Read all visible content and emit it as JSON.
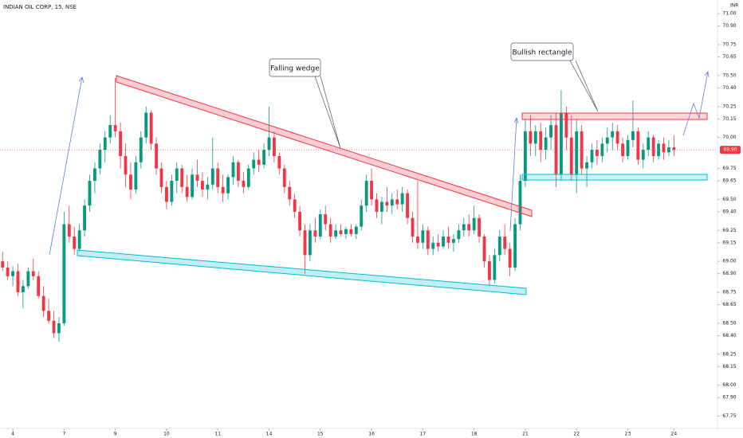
{
  "header": {
    "title": "INDIAN OIL CORP, 15, NSE",
    "currency": "INR"
  },
  "chart_data": {
    "type": "candlestick",
    "annotations": [
      "Falling wedge",
      "Bullish rectangle"
    ],
    "up_color": "#089981",
    "down_color": "#f23645",
    "last_price": {
      "value": 69.9,
      "label": "69.90"
    },
    "ylim": [
      67.67,
      71.11
    ],
    "yticks": [
      {
        "value": 71,
        "label": "71.00"
      },
      {
        "value": 70.9,
        "label": "70.90"
      },
      {
        "value": 70.75,
        "label": "70.75"
      },
      {
        "value": 70.65,
        "label": "70.65"
      },
      {
        "value": 70.5,
        "label": "70.50"
      },
      {
        "value": 70.4,
        "label": "70.40"
      },
      {
        "value": 70.25,
        "label": "70.25"
      },
      {
        "value": 70.15,
        "label": "70.15"
      },
      {
        "value": 70,
        "label": "70.00"
      },
      {
        "value": 69.75,
        "label": "69.75"
      },
      {
        "value": 69.65,
        "label": "69.65"
      },
      {
        "value": 69.5,
        "label": "69.50"
      },
      {
        "value": 69.4,
        "label": "69.40"
      },
      {
        "value": 69.25,
        "label": "69.25"
      },
      {
        "value": 69.15,
        "label": "69.15"
      },
      {
        "value": 69,
        "label": "69.00"
      },
      {
        "value": 68.9,
        "label": "68.90"
      },
      {
        "value": 68.75,
        "label": "68.75"
      },
      {
        "value": 68.65,
        "label": "68.65"
      },
      {
        "value": 68.5,
        "label": "68.50"
      },
      {
        "value": 68.4,
        "label": "68.40"
      },
      {
        "value": 68.25,
        "label": "68.25"
      },
      {
        "value": 68.15,
        "label": "68.15"
      },
      {
        "value": 68,
        "label": "68.00"
      },
      {
        "value": 67.9,
        "label": "67.90"
      },
      {
        "value": 67.75,
        "label": "67.75"
      }
    ],
    "xlim": [
      -0.5,
      139.5
    ],
    "xticks": [
      {
        "value": 2,
        "label": "4"
      },
      {
        "value": 12,
        "label": "7"
      },
      {
        "value": 22,
        "label": "9"
      },
      {
        "value": 32,
        "label": "10"
      },
      {
        "value": 42,
        "label": "11"
      },
      {
        "value": 52,
        "label": "14"
      },
      {
        "value": 62,
        "label": "15"
      },
      {
        "value": 72,
        "label": "16"
      },
      {
        "value": 82,
        "label": "17"
      },
      {
        "value": 92,
        "label": "18"
      },
      {
        "value": 102,
        "label": "21"
      },
      {
        "value": 112,
        "label": "22"
      },
      {
        "value": 122,
        "label": "23"
      },
      {
        "value": 131,
        "label": "24"
      }
    ],
    "ohlc": [
      [
        69.0,
        69.08,
        68.92,
        68.95
      ],
      [
        68.95,
        69.0,
        68.85,
        68.88
      ],
      [
        68.88,
        68.96,
        68.8,
        68.92
      ],
      [
        68.92,
        68.98,
        68.72,
        68.75
      ],
      [
        68.75,
        68.85,
        68.62,
        68.8
      ],
      [
        68.8,
        68.95,
        68.78,
        68.92
      ],
      [
        68.92,
        69.02,
        68.85,
        68.88
      ],
      [
        68.88,
        68.92,
        68.7,
        68.72
      ],
      [
        68.72,
        68.8,
        68.55,
        68.6
      ],
      [
        68.6,
        68.7,
        68.5,
        68.52
      ],
      [
        68.52,
        68.6,
        68.38,
        68.42
      ],
      [
        68.42,
        68.55,
        68.35,
        68.5
      ],
      [
        68.5,
        69.4,
        68.48,
        69.3
      ],
      [
        69.3,
        69.45,
        69.15,
        69.2
      ],
      [
        69.2,
        69.28,
        69.05,
        69.1
      ],
      [
        69.1,
        69.3,
        69.08,
        69.25
      ],
      [
        69.25,
        69.5,
        69.2,
        69.45
      ],
      [
        69.45,
        69.7,
        69.4,
        69.65
      ],
      [
        69.65,
        69.8,
        69.55,
        69.75
      ],
      [
        69.75,
        69.95,
        69.7,
        69.9
      ],
      [
        69.9,
        70.05,
        69.8,
        70.0
      ],
      [
        70.0,
        70.18,
        69.95,
        70.1
      ],
      [
        70.1,
        70.48,
        70.0,
        70.05
      ],
      [
        70.05,
        70.12,
        69.75,
        69.85
      ],
      [
        69.85,
        69.95,
        69.6,
        69.7
      ],
      [
        69.7,
        69.8,
        69.5,
        69.58
      ],
      [
        69.58,
        69.85,
        69.55,
        69.8
      ],
      [
        69.8,
        70.05,
        69.75,
        70.0
      ],
      [
        70.0,
        70.25,
        69.95,
        70.2
      ],
      [
        70.2,
        70.22,
        69.9,
        69.95
      ],
      [
        69.95,
        70.0,
        69.7,
        69.75
      ],
      [
        69.75,
        69.8,
        69.55,
        69.6
      ],
      [
        69.6,
        69.65,
        69.42,
        69.48
      ],
      [
        69.48,
        69.7,
        69.45,
        69.65
      ],
      [
        69.65,
        69.8,
        69.55,
        69.75
      ],
      [
        69.75,
        69.78,
        69.55,
        69.6
      ],
      [
        69.6,
        69.7,
        69.48,
        69.52
      ],
      [
        69.52,
        69.75,
        69.5,
        69.7
      ],
      [
        69.7,
        69.82,
        69.6,
        69.65
      ],
      [
        69.65,
        69.72,
        69.52,
        69.58
      ],
      [
        69.58,
        69.68,
        69.5,
        69.62
      ],
      [
        69.62,
        70.0,
        69.58,
        69.75
      ],
      [
        69.75,
        69.8,
        69.55,
        69.6
      ],
      [
        69.6,
        69.7,
        69.48,
        69.55
      ],
      [
        69.55,
        69.7,
        69.5,
        69.68
      ],
      [
        69.68,
        69.85,
        69.62,
        69.8
      ],
      [
        69.8,
        69.82,
        69.6,
        69.65
      ],
      [
        69.65,
        69.72,
        69.55,
        69.6
      ],
      [
        69.6,
        69.78,
        69.58,
        69.75
      ],
      [
        69.75,
        69.88,
        69.7,
        69.82
      ],
      [
        69.82,
        69.9,
        69.72,
        69.78
      ],
      [
        69.78,
        69.95,
        69.75,
        69.9
      ],
      [
        69.9,
        70.25,
        69.85,
        70.0
      ],
      [
        70.0,
        70.05,
        69.8,
        69.85
      ],
      [
        69.85,
        69.88,
        69.7,
        69.75
      ],
      [
        69.75,
        69.78,
        69.55,
        69.6
      ],
      [
        69.6,
        69.65,
        69.45,
        69.5
      ],
      [
        69.5,
        69.55,
        69.35,
        69.4
      ],
      [
        69.4,
        69.45,
        69.2,
        69.25
      ],
      [
        69.25,
        69.3,
        68.9,
        69.05
      ],
      [
        69.05,
        69.3,
        69.0,
        69.25
      ],
      [
        69.25,
        69.35,
        69.15,
        69.2
      ],
      [
        69.2,
        69.42,
        69.18,
        69.38
      ],
      [
        69.38,
        69.45,
        69.25,
        69.3
      ],
      [
        69.3,
        69.35,
        69.15,
        69.2
      ],
      [
        69.2,
        69.3,
        69.18,
        69.25
      ],
      [
        69.25,
        69.3,
        69.2,
        69.22
      ],
      [
        69.22,
        69.28,
        69.18,
        69.26
      ],
      [
        69.26,
        69.3,
        69.2,
        69.22
      ],
      [
        69.22,
        69.3,
        69.18,
        69.28
      ],
      [
        69.28,
        69.5,
        69.25,
        69.45
      ],
      [
        69.45,
        69.7,
        69.4,
        69.65
      ],
      [
        69.65,
        69.75,
        69.45,
        69.5
      ],
      [
        69.5,
        69.55,
        69.35,
        69.4
      ],
      [
        69.4,
        69.52,
        69.3,
        69.48
      ],
      [
        69.48,
        69.6,
        69.4,
        69.45
      ],
      [
        69.45,
        69.55,
        69.38,
        69.5
      ],
      [
        69.5,
        69.58,
        69.42,
        69.46
      ],
      [
        69.46,
        69.6,
        69.4,
        69.55
      ],
      [
        69.55,
        69.58,
        69.3,
        69.35
      ],
      [
        69.35,
        69.4,
        69.15,
        69.2
      ],
      [
        69.2,
        69.65,
        69.1,
        69.15
      ],
      [
        69.15,
        69.3,
        69.1,
        69.25
      ],
      [
        69.25,
        69.28,
        69.05,
        69.1
      ],
      [
        69.1,
        69.2,
        69.05,
        69.15
      ],
      [
        69.15,
        69.22,
        69.08,
        69.12
      ],
      [
        69.12,
        69.25,
        69.1,
        69.2
      ],
      [
        69.2,
        69.28,
        69.1,
        69.15
      ],
      [
        69.15,
        69.22,
        69.08,
        69.18
      ],
      [
        69.18,
        69.3,
        69.15,
        69.25
      ],
      [
        69.25,
        69.35,
        69.2,
        69.3
      ],
      [
        69.3,
        69.38,
        69.2,
        69.25
      ],
      [
        69.25,
        69.45,
        69.22,
        69.35
      ],
      [
        69.35,
        69.38,
        69.15,
        69.2
      ],
      [
        69.2,
        69.22,
        68.95,
        69.0
      ],
      [
        69.0,
        69.05,
        68.8,
        68.85
      ],
      [
        68.85,
        69.1,
        68.82,
        69.05
      ],
      [
        69.05,
        69.25,
        69.0,
        69.2
      ],
      [
        69.2,
        69.3,
        69.05,
        69.1
      ],
      [
        69.1,
        69.15,
        68.88,
        68.95
      ],
      [
        68.95,
        69.35,
        68.92,
        69.3
      ],
      [
        69.3,
        69.7,
        69.25,
        69.65
      ],
      [
        69.65,
        70.15,
        69.6,
        70.05
      ],
      [
        70.05,
        70.18,
        69.85,
        69.95
      ],
      [
        69.95,
        70.1,
        69.85,
        70.05
      ],
      [
        70.05,
        70.12,
        69.8,
        69.9
      ],
      [
        69.9,
        70.08,
        69.82,
        70.0
      ],
      [
        70.0,
        70.18,
        69.9,
        70.1
      ],
      [
        70.1,
        70.2,
        69.6,
        69.7
      ],
      [
        69.7,
        70.38,
        69.65,
        70.2
      ],
      [
        70.2,
        70.25,
        69.9,
        70.0
      ],
      [
        70.0,
        70.18,
        69.65,
        69.7
      ],
      [
        69.7,
        70.15,
        69.55,
        70.05
      ],
      [
        70.05,
        70.1,
        69.7,
        69.75
      ],
      [
        69.75,
        69.85,
        69.6,
        69.8
      ],
      [
        69.8,
        69.95,
        69.75,
        69.9
      ],
      [
        69.9,
        69.98,
        69.78,
        69.85
      ],
      [
        69.85,
        70.0,
        69.8,
        69.95
      ],
      [
        69.95,
        70.08,
        69.88,
        70.0
      ],
      [
        70.0,
        70.12,
        69.9,
        70.05
      ],
      [
        70.05,
        70.1,
        69.9,
        69.95
      ],
      [
        69.95,
        70.0,
        69.8,
        69.85
      ],
      [
        69.85,
        70.02,
        69.82,
        69.98
      ],
      [
        69.98,
        70.3,
        69.92,
        70.05
      ],
      [
        70.05,
        70.08,
        69.78,
        69.82
      ],
      [
        69.82,
        69.95,
        69.75,
        69.9
      ],
      [
        69.9,
        70.05,
        69.85,
        70.0
      ],
      [
        70.0,
        70.02,
        69.8,
        69.85
      ],
      [
        69.85,
        69.98,
        69.82,
        69.95
      ],
      [
        69.95,
        70.0,
        69.82,
        69.88
      ],
      [
        69.88,
        69.98,
        69.85,
        69.92
      ],
      [
        69.92,
        70.02,
        69.85,
        69.9
      ]
    ]
  }
}
